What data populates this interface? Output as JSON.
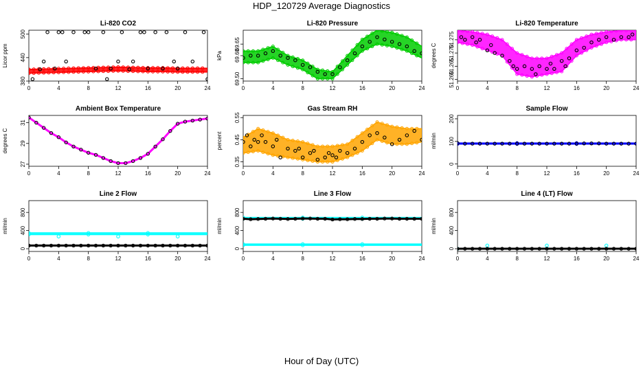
{
  "figure": {
    "title": "HDP_120729  Average Diagnostics",
    "xlabel": "Hour of Day (UTC)"
  },
  "colors": {
    "red": "#ff0000",
    "green": "#00cc00",
    "magenta": "#ff00ff",
    "orange": "#ffa500",
    "blue": "#0000ff",
    "cyan": "#00ffff",
    "black": "#000000"
  },
  "chart_data": [
    {
      "id": "p1",
      "type": "scatter",
      "title": "Li-820 CO2",
      "ylabel": "Licor ppm",
      "xlim": [
        0,
        24
      ],
      "ylim": [
        380,
        510
      ],
      "xticks": [
        0,
        4,
        8,
        12,
        16,
        20,
        24
      ],
      "yticks": [
        380,
        440,
        500
      ],
      "series": [
        {
          "style": "band",
          "color": "red",
          "x": [
            0,
            2,
            4,
            6,
            8,
            10,
            12,
            14,
            16,
            18,
            20,
            22,
            24
          ],
          "y_low": [
            400,
            401,
            402,
            403,
            404,
            405,
            406,
            405,
            404,
            404,
            403,
            403,
            403
          ],
          "y_high": [
            410,
            411,
            412,
            413,
            414,
            415,
            416,
            415,
            414,
            414,
            413,
            413,
            413
          ]
        },
        {
          "style": "circles",
          "color": "black",
          "x": [
            0.5,
            1.5,
            2,
            2.5,
            3.5,
            4,
            4.5,
            5,
            6,
            7.5,
            8,
            9,
            10,
            10.5,
            11,
            12,
            12.5,
            13.5,
            14,
            15,
            15.5,
            16,
            17,
            18,
            18.5,
            19.5,
            20,
            21,
            22,
            23.5,
            24
          ],
          "y": [
            385,
            410,
            430,
            505,
            412,
            505,
            505,
            430,
            505,
            505,
            505,
            412,
            505,
            385,
            412,
            430,
            505,
            410,
            430,
            505,
            505,
            412,
            505,
            412,
            505,
            430,
            412,
            505,
            430,
            505,
            385
          ]
        }
      ]
    },
    {
      "id": "p2",
      "type": "scatter",
      "title": "Li-820 Pressure",
      "ylabel": "kPa",
      "xlim": [
        0,
        24
      ],
      "ylim": [
        69.49,
        69.71
      ],
      "xticks": [
        0,
        4,
        8,
        12,
        16,
        20,
        24
      ],
      "yticks": [
        69.5,
        69.6,
        69.65
      ],
      "ytick_labels": [
        "69.50",
        "69.60",
        "69.65"
      ],
      "series": [
        {
          "style": "band",
          "color": "green",
          "x": [
            0,
            2,
            4,
            6,
            8,
            10,
            12,
            14,
            16,
            18,
            20,
            22,
            24
          ],
          "y_low": [
            69.57,
            69.57,
            69.59,
            69.56,
            69.54,
            69.5,
            69.5,
            69.56,
            69.62,
            69.65,
            69.64,
            69.62,
            69.59
          ],
          "y_high": [
            69.62,
            69.62,
            69.64,
            69.6,
            69.58,
            69.54,
            69.53,
            69.6,
            69.67,
            69.71,
            69.7,
            69.68,
            69.64
          ]
        },
        {
          "style": "circles",
          "color": "black",
          "x": [
            0,
            1,
            2,
            3,
            4,
            5,
            6,
            7,
            8,
            9,
            10,
            11,
            12,
            13,
            14,
            15,
            16,
            17,
            18,
            19,
            20,
            21,
            22,
            23,
            24
          ],
          "y": [
            69.59,
            69.6,
            69.6,
            69.61,
            69.62,
            69.6,
            69.59,
            69.58,
            69.56,
            69.55,
            69.53,
            69.52,
            69.52,
            69.55,
            69.58,
            69.61,
            69.64,
            69.66,
            69.68,
            69.67,
            69.66,
            69.65,
            69.64,
            69.62,
            69.61
          ]
        }
      ]
    },
    {
      "id": "p3",
      "type": "scatter",
      "title": "Li-820 Temperature",
      "ylabel": "degrees C",
      "xlim": [
        0,
        24
      ],
      "ylim": [
        51.2594,
        51.2786
      ],
      "xticks": [
        0,
        4,
        8,
        12,
        16,
        20,
        24
      ],
      "yticks": [
        51.26,
        51.265,
        51.27,
        51.275
      ],
      "ytick_labels": [
        "51.260",
        "51.265",
        "51.270",
        "51.275"
      ],
      "series": [
        {
          "style": "band",
          "color": "magenta",
          "x": [
            0,
            2,
            4,
            6,
            8,
            10,
            12,
            14,
            16,
            18,
            20,
            22,
            24
          ],
          "y_low": [
            51.274,
            51.273,
            51.271,
            51.269,
            51.262,
            51.261,
            51.262,
            51.263,
            51.269,
            51.272,
            51.274,
            51.275,
            51.275
          ],
          "y_high": [
            51.2785,
            51.278,
            51.277,
            51.275,
            51.27,
            51.268,
            51.268,
            51.27,
            51.275,
            51.277,
            51.278,
            51.2785,
            51.2785
          ]
        },
        {
          "style": "circles",
          "color": "black",
          "x": [
            0.5,
            1,
            2,
            2.5,
            3,
            4,
            4.5,
            5,
            6,
            7,
            7.5,
            8,
            9,
            10,
            10.5,
            11,
            12,
            12.5,
            13,
            14,
            14.5,
            15,
            16,
            17,
            18,
            19,
            20,
            21,
            22,
            23,
            23.5
          ],
          "y": [
            51.276,
            51.275,
            51.276,
            51.274,
            51.275,
            51.271,
            51.273,
            51.27,
            51.269,
            51.267,
            51.265,
            51.264,
            51.265,
            51.264,
            51.262,
            51.265,
            51.264,
            51.266,
            51.264,
            51.267,
            51.265,
            51.268,
            51.271,
            51.272,
            51.274,
            51.275,
            51.276,
            51.275,
            51.276,
            51.276,
            51.277
          ]
        }
      ]
    },
    {
      "id": "p4",
      "type": "line",
      "title": "Ambient Box Temperature",
      "ylabel": "degrees C",
      "xlim": [
        0,
        24
      ],
      "ylim": [
        26.8,
        31.7
      ],
      "xticks": [
        0,
        4,
        8,
        12,
        16,
        20,
        24
      ],
      "yticks": [
        27,
        29,
        31
      ],
      "series": [
        {
          "style": "markerline",
          "color": "magenta",
          "x": [
            0,
            1,
            2,
            3,
            4,
            5,
            6,
            7,
            8,
            9,
            10,
            11,
            12,
            13,
            14,
            15,
            16,
            17,
            18,
            19,
            20,
            21,
            22,
            23,
            24
          ],
          "y": [
            31.5,
            31.0,
            30.5,
            30.0,
            29.6,
            29.1,
            28.7,
            28.4,
            28.1,
            27.9,
            27.6,
            27.3,
            27.1,
            27.1,
            27.3,
            27.6,
            28.0,
            28.7,
            29.4,
            30.2,
            30.9,
            31.1,
            31.2,
            31.3,
            31.4
          ]
        }
      ]
    },
    {
      "id": "p5",
      "type": "scatter",
      "title": "Gas Stream RH",
      "ylabel": "percent",
      "xlim": [
        0,
        24
      ],
      "ylim": [
        0.33,
        0.56
      ],
      "xticks": [
        0,
        4,
        8,
        12,
        16,
        20,
        24
      ],
      "yticks": [
        0.35,
        0.45,
        0.55
      ],
      "series": [
        {
          "style": "band",
          "color": "orange",
          "x": [
            0,
            2,
            4,
            6,
            8,
            10,
            12,
            14,
            16,
            18,
            20,
            22,
            24
          ],
          "y_low": [
            0.39,
            0.4,
            0.38,
            0.37,
            0.36,
            0.35,
            0.35,
            0.37,
            0.4,
            0.45,
            0.43,
            0.43,
            0.44
          ],
          "y_high": [
            0.46,
            0.5,
            0.48,
            0.45,
            0.44,
            0.42,
            0.42,
            0.43,
            0.48,
            0.53,
            0.51,
            0.5,
            0.5
          ]
        },
        {
          "style": "circles",
          "color": "black",
          "x": [
            0,
            0.5,
            1,
            1.5,
            2,
            2.5,
            3,
            4,
            4.5,
            5,
            6,
            7,
            7.5,
            8,
            9,
            9.5,
            10,
            11,
            11.5,
            12,
            12.5,
            13,
            14,
            15,
            16,
            17,
            18,
            19,
            20,
            21,
            22,
            23,
            24
          ],
          "y": [
            0.44,
            0.47,
            0.42,
            0.45,
            0.44,
            0.47,
            0.44,
            0.42,
            0.45,
            0.37,
            0.41,
            0.4,
            0.41,
            0.37,
            0.39,
            0.4,
            0.36,
            0.37,
            0.39,
            0.38,
            0.37,
            0.4,
            0.39,
            0.41,
            0.44,
            0.47,
            0.48,
            0.46,
            0.43,
            0.45,
            0.47,
            0.49,
            0.45
          ]
        }
      ]
    },
    {
      "id": "p6",
      "type": "scatter",
      "title": "Sample Flow",
      "ylabel": "ml/min",
      "xlim": [
        0,
        24
      ],
      "ylim": [
        -10,
        215
      ],
      "xticks": [
        0,
        4,
        8,
        12,
        16,
        20,
        24
      ],
      "yticks": [
        0,
        100,
        200
      ],
      "series": [
        {
          "style": "band",
          "color": "blue",
          "x": [
            0,
            24
          ],
          "y_low": [
            88,
            88
          ],
          "y_high": [
            93,
            93
          ]
        },
        {
          "style": "circles",
          "color": "black",
          "x": [
            0,
            1,
            2,
            3,
            4,
            5,
            6,
            7,
            8,
            9,
            10,
            11,
            12,
            13,
            14,
            15,
            16,
            17,
            18,
            19,
            20,
            21,
            22,
            23,
            24
          ],
          "y": [
            92,
            90,
            90,
            90,
            90,
            90,
            90,
            90,
            90,
            90,
            90,
            90,
            90,
            90,
            90,
            90,
            90,
            91,
            91,
            91,
            90,
            90,
            90,
            90,
            90
          ]
        }
      ]
    },
    {
      "id": "p7",
      "type": "scatter",
      "title": "Line 2 Flow",
      "ylabel": "ml/min",
      "xlim": [
        0,
        24
      ],
      "ylim": [
        -60,
        1060
      ],
      "xticks": [
        0,
        4,
        8,
        12,
        16,
        20,
        24
      ],
      "yticks": [
        0,
        400,
        800
      ],
      "series": [
        {
          "style": "band",
          "color": "cyan",
          "x": [
            0,
            24
          ],
          "y_low": [
            310,
            310
          ],
          "y_high": [
            350,
            350
          ]
        },
        {
          "style": "circles",
          "color": "cyan",
          "x": [
            4,
            12,
            20
          ],
          "y": [
            270,
            270,
            270
          ]
        },
        {
          "style": "markerline",
          "color": "black",
          "x": [
            0,
            1,
            2,
            3,
            4,
            5,
            6,
            7,
            8,
            9,
            10,
            11,
            12,
            13,
            14,
            15,
            16,
            17,
            18,
            19,
            20,
            21,
            22,
            23,
            24
          ],
          "y": [
            70,
            70,
            70,
            70,
            70,
            70,
            70,
            70,
            70,
            70,
            70,
            70,
            70,
            70,
            70,
            70,
            70,
            70,
            70,
            70,
            70,
            70,
            70,
            70,
            70
          ]
        }
      ]
    },
    {
      "id": "p8",
      "type": "scatter",
      "title": "Line 3 Flow",
      "ylabel": "ml/min",
      "xlim": [
        0,
        24
      ],
      "ylim": [
        -60,
        1060
      ],
      "xticks": [
        0,
        4,
        8,
        12,
        16,
        20,
        24
      ],
      "yticks": [
        0,
        400,
        800
      ],
      "series": [
        {
          "style": "band",
          "color": "cyan",
          "x": [
            0,
            24
          ],
          "y_low": [
            75,
            75
          ],
          "y_high": [
            105,
            105
          ]
        },
        {
          "style": "band",
          "color": "cyan",
          "x": [
            0,
            24
          ],
          "y_low": [
            655,
            655
          ],
          "y_high": [
            690,
            690
          ]
        },
        {
          "style": "markerline",
          "color": "black",
          "x": [
            0,
            1,
            2,
            3,
            4,
            5,
            6,
            7,
            8,
            9,
            10,
            11,
            12,
            13,
            14,
            15,
            16,
            17,
            18,
            19,
            20,
            21,
            22,
            23,
            24
          ],
          "y": [
            660,
            650,
            655,
            660,
            665,
            660,
            655,
            660,
            665,
            665,
            660,
            660,
            645,
            650,
            650,
            655,
            655,
            660,
            660,
            665,
            665,
            660,
            660,
            660,
            660
          ]
        }
      ]
    },
    {
      "id": "p9",
      "type": "scatter",
      "title": "Line 4 (LT) Flow",
      "ylabel": "ml/min",
      "xlim": [
        0,
        24
      ],
      "ylim": [
        -60,
        1060
      ],
      "xticks": [
        0,
        4,
        8,
        12,
        16,
        20,
        24
      ],
      "yticks": [
        0,
        400,
        800
      ],
      "series": [
        {
          "style": "circles",
          "color": "cyan",
          "x": [
            0,
            4,
            12,
            20
          ],
          "y": [
            0,
            70,
            70,
            70
          ]
        },
        {
          "style": "markerline",
          "color": "black",
          "x": [
            0,
            1,
            2,
            3,
            4,
            5,
            6,
            7,
            8,
            9,
            10,
            11,
            12,
            13,
            14,
            15,
            16,
            17,
            18,
            19,
            20,
            21,
            22,
            23,
            24
          ],
          "y": [
            0,
            0,
            0,
            0,
            0,
            0,
            0,
            0,
            0,
            0,
            0,
            0,
            0,
            0,
            0,
            0,
            0,
            0,
            0,
            0,
            0,
            0,
            0,
            0,
            0
          ]
        }
      ]
    }
  ]
}
